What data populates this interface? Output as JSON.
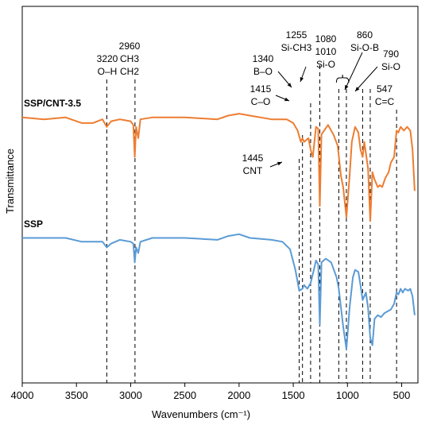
{
  "chart_data": {
    "type": "line",
    "xlabel": "Wavenumbers (cm⁻¹)",
    "ylabel": "Transmittance",
    "xlim": [
      4000,
      350
    ],
    "xticks": [
      4000,
      3500,
      3000,
      2500,
      2000,
      1500,
      1000,
      500
    ],
    "x_reversed": true,
    "series": [
      {
        "name": "SSP/CNT-3.5",
        "color": "#ED7D31",
        "points": [
          [
            4000,
            0.705
          ],
          [
            3800,
            0.7
          ],
          [
            3600,
            0.705
          ],
          [
            3450,
            0.69
          ],
          [
            3350,
            0.69
          ],
          [
            3260,
            0.7
          ],
          [
            3220,
            0.68
          ],
          [
            3180,
            0.695
          ],
          [
            3100,
            0.7
          ],
          [
            3000,
            0.695
          ],
          [
            2975,
            0.685
          ],
          [
            2962,
            0.6
          ],
          [
            2950,
            0.68
          ],
          [
            2930,
            0.65
          ],
          [
            2910,
            0.7
          ],
          [
            2800,
            0.705
          ],
          [
            2500,
            0.705
          ],
          [
            2200,
            0.7
          ],
          [
            2100,
            0.71
          ],
          [
            2000,
            0.715
          ],
          [
            1900,
            0.71
          ],
          [
            1700,
            0.7
          ],
          [
            1560,
            0.7
          ],
          [
            1500,
            0.69
          ],
          [
            1460,
            0.67
          ],
          [
            1430,
            0.64
          ],
          [
            1415,
            0.65
          ],
          [
            1400,
            0.64
          ],
          [
            1360,
            0.65
          ],
          [
            1340,
            0.62
          ],
          [
            1320,
            0.6
          ],
          [
            1290,
            0.68
          ],
          [
            1270,
            0.675
          ],
          [
            1255,
            0.47
          ],
          [
            1240,
            0.66
          ],
          [
            1180,
            0.685
          ],
          [
            1130,
            0.66
          ],
          [
            1090,
            0.63
          ],
          [
            1060,
            0.55
          ],
          [
            1040,
            0.52
          ],
          [
            1010,
            0.44
          ],
          [
            980,
            0.55
          ],
          [
            960,
            0.64
          ],
          [
            930,
            0.68
          ],
          [
            900,
            0.665
          ],
          [
            880,
            0.62
          ],
          [
            860,
            0.6
          ],
          [
            845,
            0.64
          ],
          [
            830,
            0.61
          ],
          [
            810,
            0.57
          ],
          [
            790,
            0.43
          ],
          [
            770,
            0.56
          ],
          [
            750,
            0.54
          ],
          [
            720,
            0.52
          ],
          [
            700,
            0.525
          ],
          [
            680,
            0.52
          ],
          [
            650,
            0.545
          ],
          [
            620,
            0.56
          ],
          [
            600,
            0.585
          ],
          [
            570,
            0.6
          ],
          [
            547,
            0.67
          ],
          [
            530,
            0.665
          ],
          [
            510,
            0.68
          ],
          [
            480,
            0.67
          ],
          [
            450,
            0.68
          ],
          [
            420,
            0.67
          ],
          [
            400,
            0.62
          ],
          [
            380,
            0.51
          ]
        ]
      },
      {
        "name": "SSP",
        "color": "#5B9BD5",
        "points": [
          [
            4000,
            0.385
          ],
          [
            3800,
            0.385
          ],
          [
            3600,
            0.385
          ],
          [
            3450,
            0.375
          ],
          [
            3350,
            0.375
          ],
          [
            3260,
            0.375
          ],
          [
            3220,
            0.36
          ],
          [
            3180,
            0.37
          ],
          [
            3100,
            0.38
          ],
          [
            3000,
            0.375
          ],
          [
            2975,
            0.37
          ],
          [
            2962,
            0.32
          ],
          [
            2950,
            0.36
          ],
          [
            2930,
            0.345
          ],
          [
            2910,
            0.375
          ],
          [
            2800,
            0.385
          ],
          [
            2500,
            0.385
          ],
          [
            2200,
            0.38
          ],
          [
            2100,
            0.39
          ],
          [
            2000,
            0.395
          ],
          [
            1900,
            0.385
          ],
          [
            1700,
            0.38
          ],
          [
            1600,
            0.375
          ],
          [
            1530,
            0.355
          ],
          [
            1480,
            0.3
          ],
          [
            1445,
            0.245
          ],
          [
            1415,
            0.25
          ],
          [
            1400,
            0.26
          ],
          [
            1370,
            0.25
          ],
          [
            1340,
            0.265
          ],
          [
            1310,
            0.3
          ],
          [
            1290,
            0.325
          ],
          [
            1270,
            0.315
          ],
          [
            1255,
            0.155
          ],
          [
            1240,
            0.32
          ],
          [
            1200,
            0.33
          ],
          [
            1150,
            0.32
          ],
          [
            1100,
            0.28
          ],
          [
            1080,
            0.25
          ],
          [
            1040,
            0.15
          ],
          [
            1010,
            0.09
          ],
          [
            980,
            0.2
          ],
          [
            950,
            0.28
          ],
          [
            930,
            0.3
          ],
          [
            900,
            0.295
          ],
          [
            880,
            0.26
          ],
          [
            860,
            0.22
          ],
          [
            830,
            0.24
          ],
          [
            810,
            0.2
          ],
          [
            790,
            0.12
          ],
          [
            770,
            0.1
          ],
          [
            750,
            0.17
          ],
          [
            720,
            0.18
          ],
          [
            690,
            0.175
          ],
          [
            660,
            0.185
          ],
          [
            630,
            0.19
          ],
          [
            600,
            0.195
          ],
          [
            570,
            0.21
          ],
          [
            547,
            0.24
          ],
          [
            530,
            0.235
          ],
          [
            510,
            0.25
          ],
          [
            490,
            0.24
          ],
          [
            470,
            0.25
          ],
          [
            440,
            0.245
          ],
          [
            420,
            0.25
          ],
          [
            400,
            0.23
          ],
          [
            380,
            0.18
          ]
        ]
      }
    ],
    "guide_lines": [
      3220,
      2960,
      1445,
      1415,
      1340,
      1255,
      1080,
      1010,
      860,
      790,
      547
    ],
    "annotations": [
      {
        "lines": [
          "3220",
          "O–H"
        ],
        "x": 3220
      },
      {
        "lines": [
          "2960",
          "CH3",
          "CH2"
        ],
        "x": 2960
      },
      {
        "lines": [
          "1340",
          "B–O"
        ],
        "x": 1340
      },
      {
        "lines": [
          "1255",
          "Si-CH3"
        ],
        "x": 1255
      },
      {
        "lines": [
          "1080",
          "1010",
          "Si-O"
        ],
        "x": 1045
      },
      {
        "lines": [
          "860",
          "Si-O-B"
        ],
        "x": 860
      },
      {
        "lines": [
          "790",
          "Si-O"
        ],
        "x": 790
      },
      {
        "lines": [
          "547",
          "C=C"
        ],
        "x": 547
      },
      {
        "lines": [
          "1415",
          "C–O"
        ],
        "x": 1415
      },
      {
        "lines": [
          "1445",
          "CNT"
        ],
        "x": 1445
      }
    ]
  }
}
